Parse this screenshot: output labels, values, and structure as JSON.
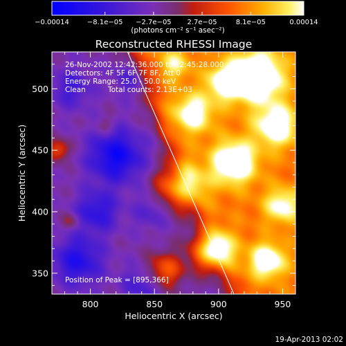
{
  "chart_data": {
    "type": "heatmap",
    "title": "Reconstructed RHESSI Image",
    "xlabel": "Heliocentric X (arcsec)",
    "ylabel": "Heliocentric Y (arcsec)",
    "xlim": [
      770,
      960
    ],
    "ylim": [
      333,
      530
    ],
    "xticks": [
      "800",
      "850",
      "900",
      "950"
    ],
    "xtick_values": [
      800,
      850,
      900,
      950
    ],
    "yticks": [
      "350",
      "400",
      "450",
      "500"
    ],
    "ytick_values": [
      350,
      400,
      450,
      500
    ],
    "colorbar": {
      "label": "(photons cm⁻² s⁻¹ asec⁻²)",
      "range": [
        -0.00014,
        0.00014
      ],
      "ticks": [
        "−0.00014",
        "−8.1e−05",
        "−2.7e−05",
        "2.7e−05",
        "8.1e−05",
        "0.00014"
      ],
      "tick_values": [
        -0.00014,
        -8.1e-05,
        -2.7e-05,
        2.7e-05,
        8.1e-05,
        0.00014
      ]
    },
    "annotations": {
      "time_range": "26-Nov-2002 12:42:36.000 to 12:45:28.000",
      "detectors": "Detectors: 4F 5F 6F 7F 8F, Att 0",
      "energy": "Energy Range: 25.0 - 50.0 keV",
      "method": "Clean",
      "counts": "Total counts: 2.13E+03",
      "peak": "Position of Peak = [895,366]"
    },
    "peak_position": [
      895,
      366
    ],
    "limb_line": [
      [
        829,
        530
      ],
      [
        912,
        333
      ]
    ],
    "sources": [
      {
        "x": 930,
        "y": 510,
        "amp": 0.00014,
        "sigma": 14
      },
      {
        "x": 895,
        "y": 368,
        "amp": 0.00014,
        "sigma": 11
      },
      {
        "x": 870,
        "y": 420,
        "amp": 0.00011,
        "sigma": 13
      },
      {
        "x": 912,
        "y": 440,
        "amp": 0.00012,
        "sigma": 12
      },
      {
        "x": 945,
        "y": 470,
        "amp": 0.0001,
        "sigma": 12
      },
      {
        "x": 880,
        "y": 480,
        "amp": 9e-05,
        "sigma": 11
      },
      {
        "x": 938,
        "y": 360,
        "amp": 0.0001,
        "sigma": 10
      },
      {
        "x": 858,
        "y": 352,
        "amp": 8e-05,
        "sigma": 10
      },
      {
        "x": 950,
        "y": 405,
        "amp": 8e-05,
        "sigma": 10
      },
      {
        "x": 905,
        "y": 505,
        "amp": 9e-05,
        "sigma": 10
      },
      {
        "x": 865,
        "y": 520,
        "amp": 6e-05,
        "sigma": 9
      },
      {
        "x": 820,
        "y": 445,
        "amp": -0.0001,
        "sigma": 15
      },
      {
        "x": 790,
        "y": 360,
        "amp": -8e-05,
        "sigma": 14
      },
      {
        "x": 805,
        "y": 400,
        "amp": -7e-05,
        "sigma": 12
      },
      {
        "x": 785,
        "y": 500,
        "amp": -5e-05,
        "sigma": 12
      },
      {
        "x": 835,
        "y": 510,
        "amp": -5e-05,
        "sigma": 11
      },
      {
        "x": 840,
        "y": 340,
        "amp": -5e-05,
        "sigma": 11
      },
      {
        "x": 848,
        "y": 400,
        "amp": -4e-05,
        "sigma": 10
      },
      {
        "x": 775,
        "y": 450,
        "amp": 7e-05,
        "sigma": 6
      },
      {
        "x": 785,
        "y": 392,
        "amp": 4e-05,
        "sigma": 5
      },
      {
        "x": 812,
        "y": 470,
        "amp": 3e-05,
        "sigma": 5
      }
    ],
    "background": {
      "dark_side": -2.2e-05,
      "bright_side": 7e-05
    }
  },
  "footer": {
    "date": "19-Apr-2013 02:02"
  }
}
